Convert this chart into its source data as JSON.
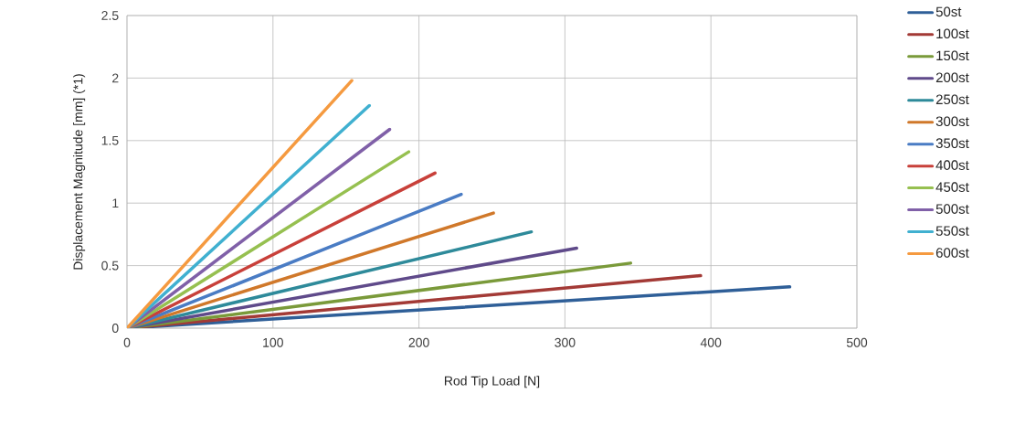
{
  "chart_data": {
    "type": "line",
    "xlabel": "Rod Tip Load [N]",
    "ylabel": "Displacement Magnitude [mm] (*1)",
    "xlim": [
      0,
      500
    ],
    "ylim": [
      0,
      2.5
    ],
    "xticks": [
      0,
      100,
      200,
      300,
      400,
      500
    ],
    "yticks": [
      0,
      0.5,
      1,
      1.5,
      2,
      2.5
    ],
    "grid": true,
    "legend": "right",
    "marker": "none",
    "line_style": "solid",
    "series": [
      {
        "name": "50st",
        "color": "#2f5f98",
        "x": [
          0,
          454
        ],
        "values": [
          0,
          0.33
        ]
      },
      {
        "name": "100st",
        "color": "#a33a36",
        "x": [
          0,
          393
        ],
        "values": [
          0,
          0.42
        ]
      },
      {
        "name": "150st",
        "color": "#7a9a3a",
        "x": [
          0,
          345
        ],
        "values": [
          0,
          0.52
        ]
      },
      {
        "name": "200st",
        "color": "#5f4a8a",
        "x": [
          0,
          308
        ],
        "values": [
          0,
          0.64
        ]
      },
      {
        "name": "250st",
        "color": "#2e8a9a",
        "x": [
          0,
          277
        ],
        "values": [
          0,
          0.77
        ]
      },
      {
        "name": "300st",
        "color": "#d0782a",
        "x": [
          0,
          251
        ],
        "values": [
          0,
          0.92
        ]
      },
      {
        "name": "350st",
        "color": "#4a7cc4",
        "x": [
          0,
          229
        ],
        "values": [
          0,
          1.07
        ]
      },
      {
        "name": "400st",
        "color": "#c8403a",
        "x": [
          0,
          211
        ],
        "values": [
          0,
          1.24
        ]
      },
      {
        "name": "450st",
        "color": "#96c050",
        "x": [
          0,
          193
        ],
        "values": [
          0,
          1.41
        ]
      },
      {
        "name": "500st",
        "color": "#8060a8",
        "x": [
          0,
          180
        ],
        "values": [
          0,
          1.59
        ]
      },
      {
        "name": "550st",
        "color": "#40b0d0",
        "x": [
          0,
          166
        ],
        "values": [
          0,
          1.78
        ]
      },
      {
        "name": "600st",
        "color": "#f59a40",
        "x": [
          0,
          154
        ],
        "values": [
          0,
          1.98
        ]
      }
    ]
  }
}
